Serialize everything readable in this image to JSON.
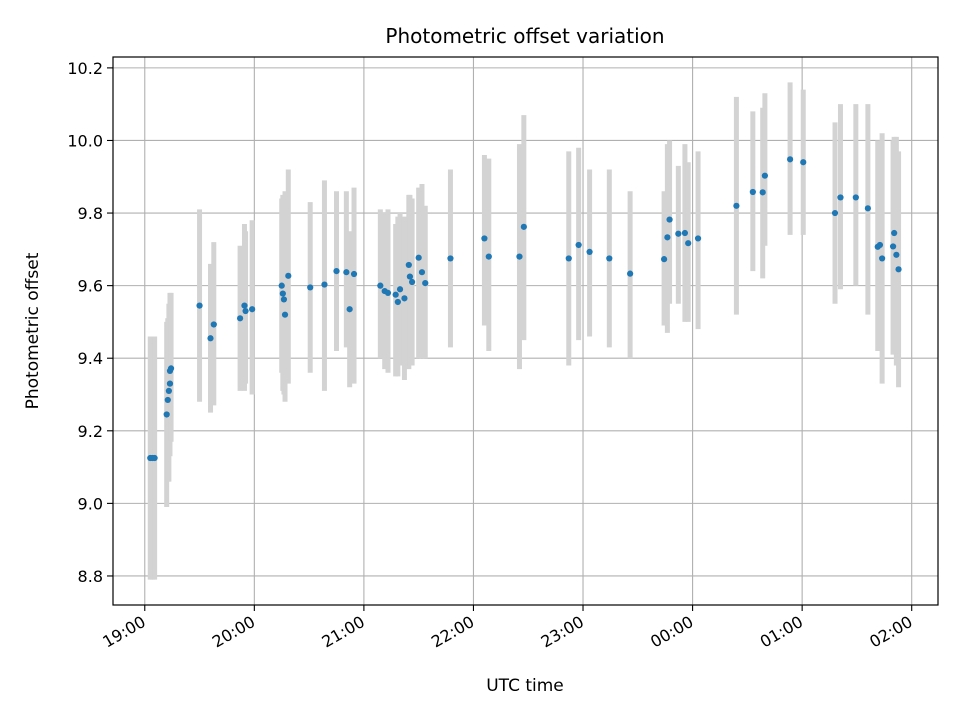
{
  "chart_data": {
    "type": "scatter",
    "title": "Photometric offset variation",
    "xlabel": "UTC time",
    "ylabel": "Photometric offset",
    "x_unit": "hours",
    "x_ticks": [
      {
        "x": 19,
        "label": "19:00"
      },
      {
        "x": 20,
        "label": "20:00"
      },
      {
        "x": 21,
        "label": "21:00"
      },
      {
        "x": 22,
        "label": "22:00"
      },
      {
        "x": 23,
        "label": "23:00"
      },
      {
        "x": 24,
        "label": "00:00"
      },
      {
        "x": 25,
        "label": "01:00"
      },
      {
        "x": 26,
        "label": "02:00"
      }
    ],
    "y_ticks": [
      8.8,
      9.0,
      9.2,
      9.4,
      9.6,
      9.8,
      10.0,
      10.2
    ],
    "xlim": [
      18.71,
      26.24
    ],
    "ylim": [
      8.72,
      10.23
    ],
    "grid": true,
    "marker_color": "#1f77b4",
    "errorbar_color": "#d3d3d3",
    "points": [
      [
        19.05,
        9.125,
        8.79,
        9.46
      ],
      [
        19.07,
        9.125,
        8.79,
        9.46
      ],
      [
        19.09,
        9.125,
        8.79,
        9.46
      ],
      [
        19.2,
        9.245,
        8.99,
        9.5
      ],
      [
        19.21,
        9.285,
        9.06,
        9.51
      ],
      [
        19.22,
        9.31,
        9.06,
        9.55
      ],
      [
        19.23,
        9.33,
        9.13,
        9.56
      ],
      [
        19.23,
        9.365,
        9.17,
        9.58
      ],
      [
        19.24,
        9.372,
        9.17,
        9.58
      ],
      [
        19.5,
        9.545,
        9.28,
        9.81
      ],
      [
        19.6,
        9.455,
        9.25,
        9.66
      ],
      [
        19.63,
        9.493,
        9.27,
        9.72
      ],
      [
        19.87,
        9.51,
        9.31,
        9.71
      ],
      [
        19.91,
        9.545,
        9.31,
        9.77
      ],
      [
        19.92,
        9.53,
        9.33,
        9.75
      ],
      [
        19.98,
        9.535,
        9.3,
        9.78
      ],
      [
        20.25,
        9.6,
        9.36,
        9.84
      ],
      [
        20.26,
        9.578,
        9.31,
        9.85
      ],
      [
        20.27,
        9.562,
        9.3,
        9.84
      ],
      [
        20.28,
        9.52,
        9.28,
        9.86
      ],
      [
        20.31,
        9.627,
        9.33,
        9.92
      ],
      [
        20.51,
        9.595,
        9.36,
        9.83
      ],
      [
        20.64,
        9.603,
        9.31,
        9.89
      ],
      [
        20.75,
        9.64,
        9.42,
        9.86
      ],
      [
        20.84,
        9.637,
        9.43,
        9.86
      ],
      [
        20.87,
        9.535,
        9.32,
        9.75
      ],
      [
        20.91,
        9.632,
        9.33,
        9.87
      ],
      [
        21.15,
        9.6,
        9.4,
        9.81
      ],
      [
        21.19,
        9.585,
        9.37,
        9.8
      ],
      [
        21.22,
        9.58,
        9.36,
        9.81
      ],
      [
        21.29,
        9.575,
        9.35,
        9.77
      ],
      [
        21.31,
        9.555,
        9.35,
        9.79
      ],
      [
        21.33,
        9.59,
        9.38,
        9.8
      ],
      [
        21.37,
        9.565,
        9.34,
        9.79
      ],
      [
        21.41,
        9.657,
        9.37,
        9.85
      ],
      [
        21.42,
        9.625,
        9.38,
        9.85
      ],
      [
        21.44,
        9.61,
        9.38,
        9.84
      ],
      [
        21.5,
        9.677,
        9.4,
        9.87
      ],
      [
        21.53,
        9.637,
        9.4,
        9.88
      ],
      [
        21.56,
        9.607,
        9.4,
        9.82
      ],
      [
        21.79,
        9.675,
        9.43,
        9.92
      ],
      [
        22.1,
        9.73,
        9.49,
        9.96
      ],
      [
        22.14,
        9.68,
        9.42,
        9.95
      ],
      [
        22.42,
        9.68,
        9.37,
        9.99
      ],
      [
        22.46,
        9.762,
        9.45,
        10.07
      ],
      [
        22.87,
        9.675,
        9.38,
        9.97
      ],
      [
        22.96,
        9.712,
        9.45,
        9.98
      ],
      [
        23.06,
        9.693,
        9.46,
        9.92
      ],
      [
        23.24,
        9.675,
        9.43,
        9.92
      ],
      [
        23.43,
        9.633,
        9.4,
        9.86
      ],
      [
        23.74,
        9.673,
        9.49,
        9.86
      ],
      [
        23.77,
        9.733,
        9.47,
        9.99
      ],
      [
        23.79,
        9.782,
        9.55,
        10.0
      ],
      [
        23.87,
        9.743,
        9.55,
        9.93
      ],
      [
        23.93,
        9.745,
        9.5,
        9.99
      ],
      [
        23.96,
        9.717,
        9.5,
        9.94
      ],
      [
        24.05,
        9.73,
        9.48,
        9.97
      ],
      [
        24.4,
        9.82,
        9.52,
        10.12
      ],
      [
        24.55,
        9.858,
        9.64,
        10.08
      ],
      [
        24.64,
        9.857,
        9.62,
        10.09
      ],
      [
        24.66,
        9.903,
        9.71,
        10.13
      ],
      [
        24.89,
        9.948,
        9.74,
        10.16
      ],
      [
        25.01,
        9.94,
        9.74,
        10.14
      ],
      [
        25.3,
        9.8,
        9.55,
        10.05
      ],
      [
        25.35,
        9.843,
        9.59,
        10.1
      ],
      [
        25.49,
        9.843,
        9.6,
        10.1
      ],
      [
        25.6,
        9.813,
        9.52,
        10.1
      ],
      [
        25.69,
        9.707,
        9.42,
        10.0
      ],
      [
        25.71,
        9.712,
        9.42,
        10.0
      ],
      [
        25.73,
        9.675,
        9.33,
        10.02
      ],
      [
        25.83,
        9.708,
        9.41,
        10.0
      ],
      [
        25.84,
        9.745,
        9.42,
        10.01
      ],
      [
        25.86,
        9.685,
        9.38,
        10.01
      ],
      [
        25.88,
        9.645,
        9.32,
        9.97
      ]
    ]
  }
}
